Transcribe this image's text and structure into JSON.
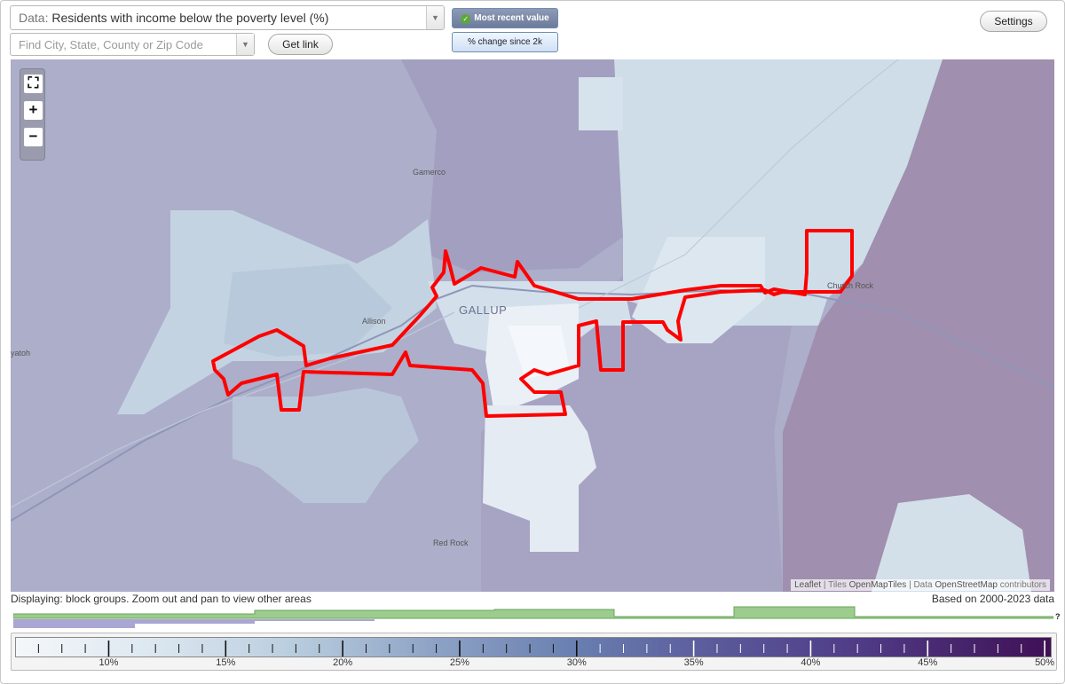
{
  "controls": {
    "data_prefix": "Data:",
    "data_value": "Residents with income below the poverty level (%)",
    "search_placeholder": "Find City, State, County or Zip Code",
    "get_link_label": "Get link",
    "mode_recent_label": "Most recent value",
    "mode_change_label": "% change since 2k",
    "settings_label": "Settings",
    "dropdown_glyph": "▼"
  },
  "map": {
    "city_label": "GALLUP",
    "places": [
      "Gamerco",
      "Allison",
      "Church Rock",
      "Red Rock",
      "yatoh"
    ],
    "zoom": {
      "fit_glyph": "⛶",
      "in_glyph": "+",
      "out_glyph": "−"
    },
    "attribution": {
      "leaflet": "Leaflet",
      "sep1": " | Tiles ",
      "tiles": "OpenMapTiles",
      "sep2": " | Data ",
      "data": "OpenStreetMap",
      "contrib": " contributors"
    },
    "highlight_color": "#ff0000"
  },
  "footer": {
    "displaying": "Displaying: block groups. Zoom out and pan to view other areas",
    "based_on": "Based on 2000-2023 data",
    "timeline_help": "?"
  },
  "legend": {
    "ticks": [
      "10%",
      "15%",
      "20%",
      "25%",
      "30%",
      "35%",
      "40%",
      "45%",
      "50%"
    ],
    "color_low": "#f4f7fa",
    "color_high": "#3f1055"
  }
}
